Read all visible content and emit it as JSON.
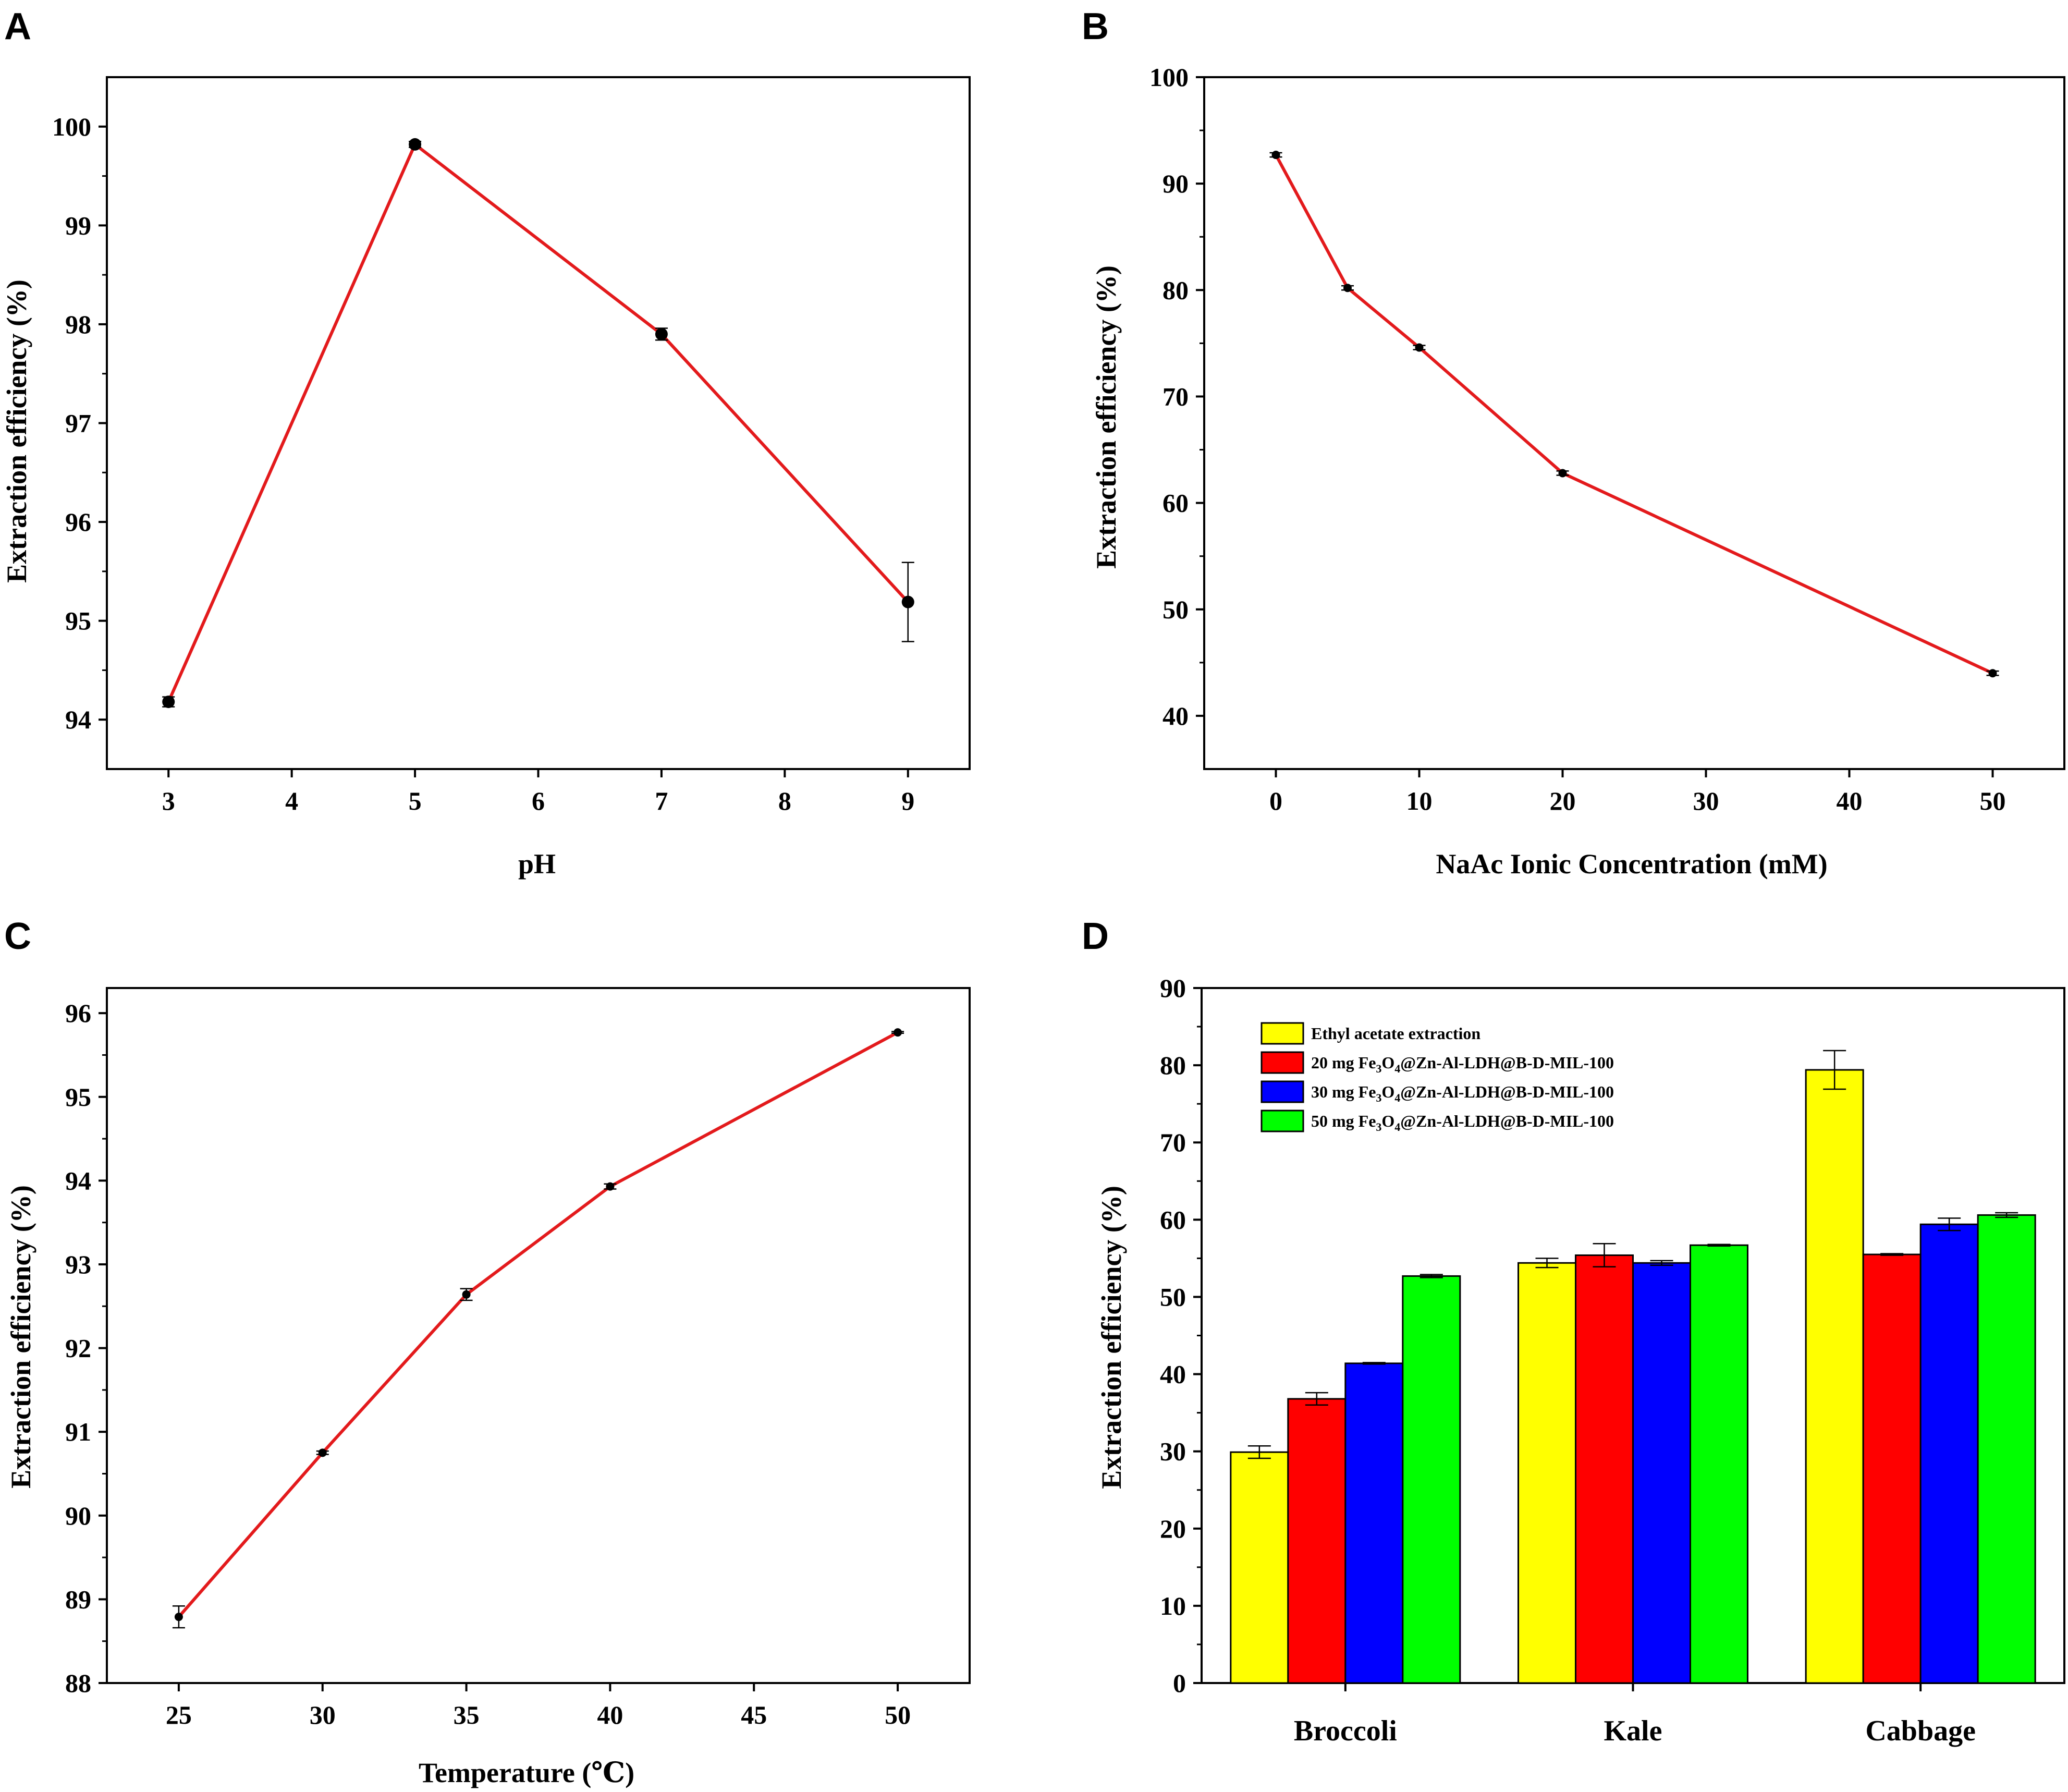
{
  "chart_data": [
    {
      "panel": "A",
      "type": "line",
      "xlabel": "pH",
      "ylabel": "Extraction efficiency (%)",
      "x": [
        3,
        5,
        7,
        9
      ],
      "y": [
        94.18,
        99.82,
        97.9,
        95.19
      ],
      "yerr": [
        0.05,
        0.03,
        0.06,
        0.4
      ],
      "xlim": [
        2.5,
        9.5
      ],
      "ylim": [
        93.5,
        100.5
      ],
      "xticks": [
        3,
        4,
        5,
        6,
        7,
        8,
        9
      ],
      "xtick_labels": [
        "3",
        "4",
        "5",
        "6",
        "7",
        "8",
        "9"
      ],
      "yticks": [
        94,
        95,
        96,
        97,
        98,
        99,
        100
      ],
      "line_color": "#e31a1c",
      "marker_color": "#000000"
    },
    {
      "panel": "B",
      "type": "line",
      "xlabel": "NaAc Ionic Concentration  (mM)",
      "ylabel": "Extraction efficiency (%)",
      "x": [
        0,
        5,
        10,
        20,
        50
      ],
      "y": [
        92.7,
        80.2,
        74.6,
        62.8,
        44.0
      ],
      "yerr": [
        0.2,
        0.2,
        0.2,
        0.2,
        0.2
      ],
      "xlim": [
        -5,
        55
      ],
      "ylim": [
        35,
        100
      ],
      "xticks": [
        0,
        10,
        20,
        30,
        40,
        50
      ],
      "xtick_labels": [
        "0",
        "10",
        "20",
        "30",
        "40",
        "50"
      ],
      "yticks": [
        40,
        50,
        60,
        70,
        80,
        90,
        100
      ],
      "line_color": "#e31a1c",
      "marker_color": "#000000"
    },
    {
      "panel": "C",
      "type": "line",
      "xlabel": "Temperature  (℃)",
      "ylabel": "Extraction efficiency (%)",
      "x": [
        25,
        30,
        35,
        40,
        50
      ],
      "y": [
        88.79,
        90.75,
        92.64,
        93.93,
        95.77
      ],
      "yerr": [
        0.13,
        0.02,
        0.07,
        0.03,
        0.01
      ],
      "xlim": [
        22.5,
        52.5
      ],
      "ylim": [
        88,
        96.3
      ],
      "xticks": [
        25,
        30,
        35,
        40,
        45,
        50
      ],
      "xtick_labels": [
        "25",
        "30",
        "35",
        "40",
        "45",
        "50"
      ],
      "yticks": [
        88,
        89,
        90,
        91,
        92,
        93,
        94,
        95,
        96
      ],
      "line_color": "#e31a1c",
      "marker_color": "#000000"
    },
    {
      "panel": "D",
      "type": "bar",
      "ylabel": "Extraction efficiency (%)",
      "categories": [
        "Broccoli",
        "Kale",
        "Cabbage"
      ],
      "ylim": [
        0,
        90
      ],
      "yticks": [
        0,
        10,
        20,
        30,
        40,
        50,
        60,
        70,
        80,
        90
      ],
      "series": [
        {
          "name_main": "Ethyl acetate extraction",
          "name_parts": [],
          "color": "#ffff00",
          "values": [
            29.9,
            54.4,
            79.4
          ],
          "yerr": [
            0.8,
            0.6,
            2.5
          ]
        },
        {
          "name_main": "",
          "name_parts": [
            "20 mg Fe",
            "3",
            "O",
            "4",
            "@Zn-Al-LDH@B-D-MIL-100"
          ],
          "color": "#ff0000",
          "values": [
            36.8,
            55.4,
            55.5
          ],
          "yerr": [
            0.8,
            1.5,
            0.1
          ]
        },
        {
          "name_main": "",
          "name_parts": [
            "30 mg Fe",
            "3",
            "O",
            "4",
            "@Zn-Al-LDH@B-D-MIL-100"
          ],
          "color": "#0000ff",
          "values": [
            41.4,
            54.4,
            59.4
          ],
          "yerr": [
            0.1,
            0.3,
            0.8
          ]
        },
        {
          "name_main": "",
          "name_parts": [
            "50 mg Fe",
            "3",
            "O",
            "4",
            "@Zn-Al-LDH@B-D-MIL-100"
          ],
          "color": "#00ff00",
          "values": [
            52.7,
            56.7,
            60.6
          ],
          "yerr": [
            0.2,
            0.1,
            0.3
          ]
        }
      ]
    }
  ]
}
